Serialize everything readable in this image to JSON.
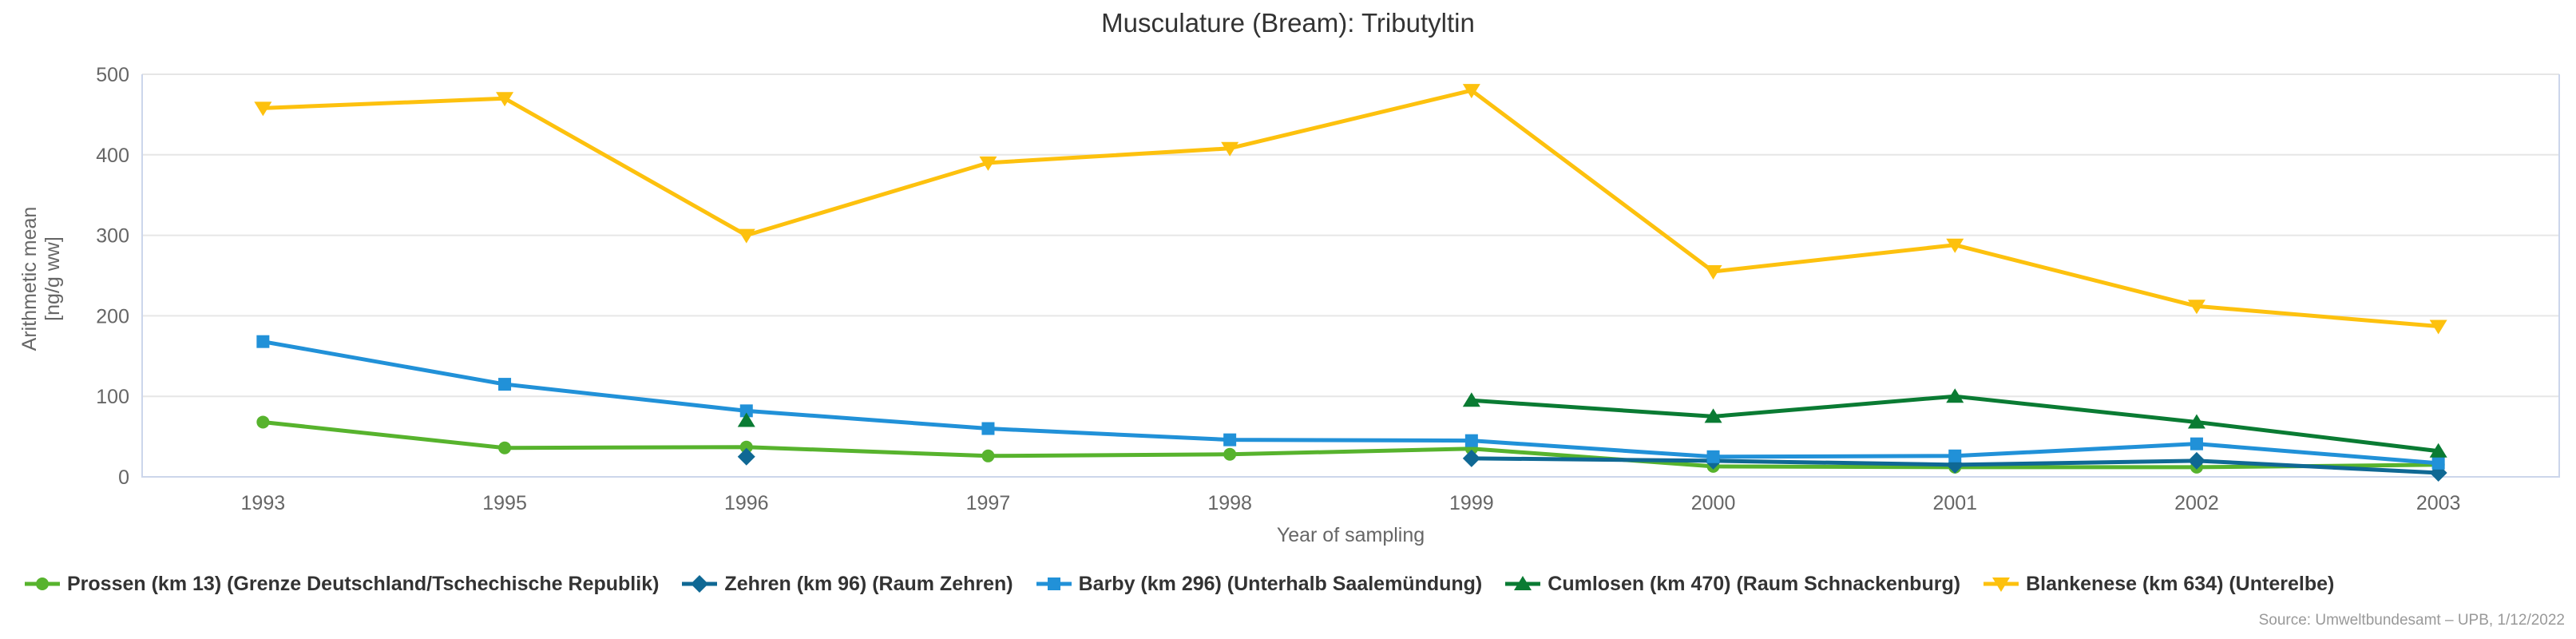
{
  "page": {
    "title": "Musculature (Bream): Tributyltin",
    "source": "Source: Umweltbundesamt – UPB, 1/12/2022"
  },
  "chart_data": {
    "type": "line",
    "title": "Musculature (Bream): Tributyltin",
    "categories": [
      "1993",
      "1995",
      "1996",
      "1997",
      "1998",
      "1999",
      "2000",
      "2001",
      "2002",
      "2003"
    ],
    "xlabel": "Year of sampling",
    "ylabel": "Arithmetic mean [ng/g ww]",
    "ylabel_lines": [
      "Arithmetic mean",
      "[ng/g ww]"
    ],
    "ylim": [
      0,
      500
    ],
    "yticks": [
      0,
      100,
      200,
      300,
      400,
      500
    ],
    "grid": true,
    "legend_position": "bottom-left",
    "colors": {
      "grid": "#e6e6e6",
      "axis_border": "#ccd6eb",
      "tick_label": "#666666",
      "legend_text": "#333333"
    },
    "series": [
      {
        "name": "Prossen (km 13) (Grenze Deutschland/Tschechische Republik)",
        "marker": "circle",
        "color": "#57b32d",
        "values": [
          68,
          36,
          37,
          26,
          28,
          35,
          13,
          12,
          12,
          15
        ]
      },
      {
        "name": "Zehren (km 96) (Raum Zehren)",
        "marker": "diamond",
        "color": "#0f6894",
        "values": [
          null,
          null,
          25,
          null,
          null,
          23,
          20,
          15,
          20,
          5
        ]
      },
      {
        "name": "Barby (km 296) (Unterhalb Saalemündung)",
        "marker": "square",
        "color": "#2191d8",
        "values": [
          168,
          115,
          82,
          60,
          46,
          45,
          25,
          26,
          41,
          17
        ]
      },
      {
        "name": "Cumlosen (km 470) (Raum Schnackenburg)",
        "marker": "triangle-up",
        "color": "#0a7b33",
        "values": [
          null,
          null,
          70,
          null,
          null,
          95,
          75,
          100,
          68,
          32
        ]
      },
      {
        "name": "Blankenese (km 634) (Unterelbe)",
        "marker": "triangle-down",
        "color": "#fdc10e",
        "values": [
          458,
          470,
          300,
          390,
          408,
          480,
          255,
          288,
          212,
          187
        ]
      }
    ]
  }
}
